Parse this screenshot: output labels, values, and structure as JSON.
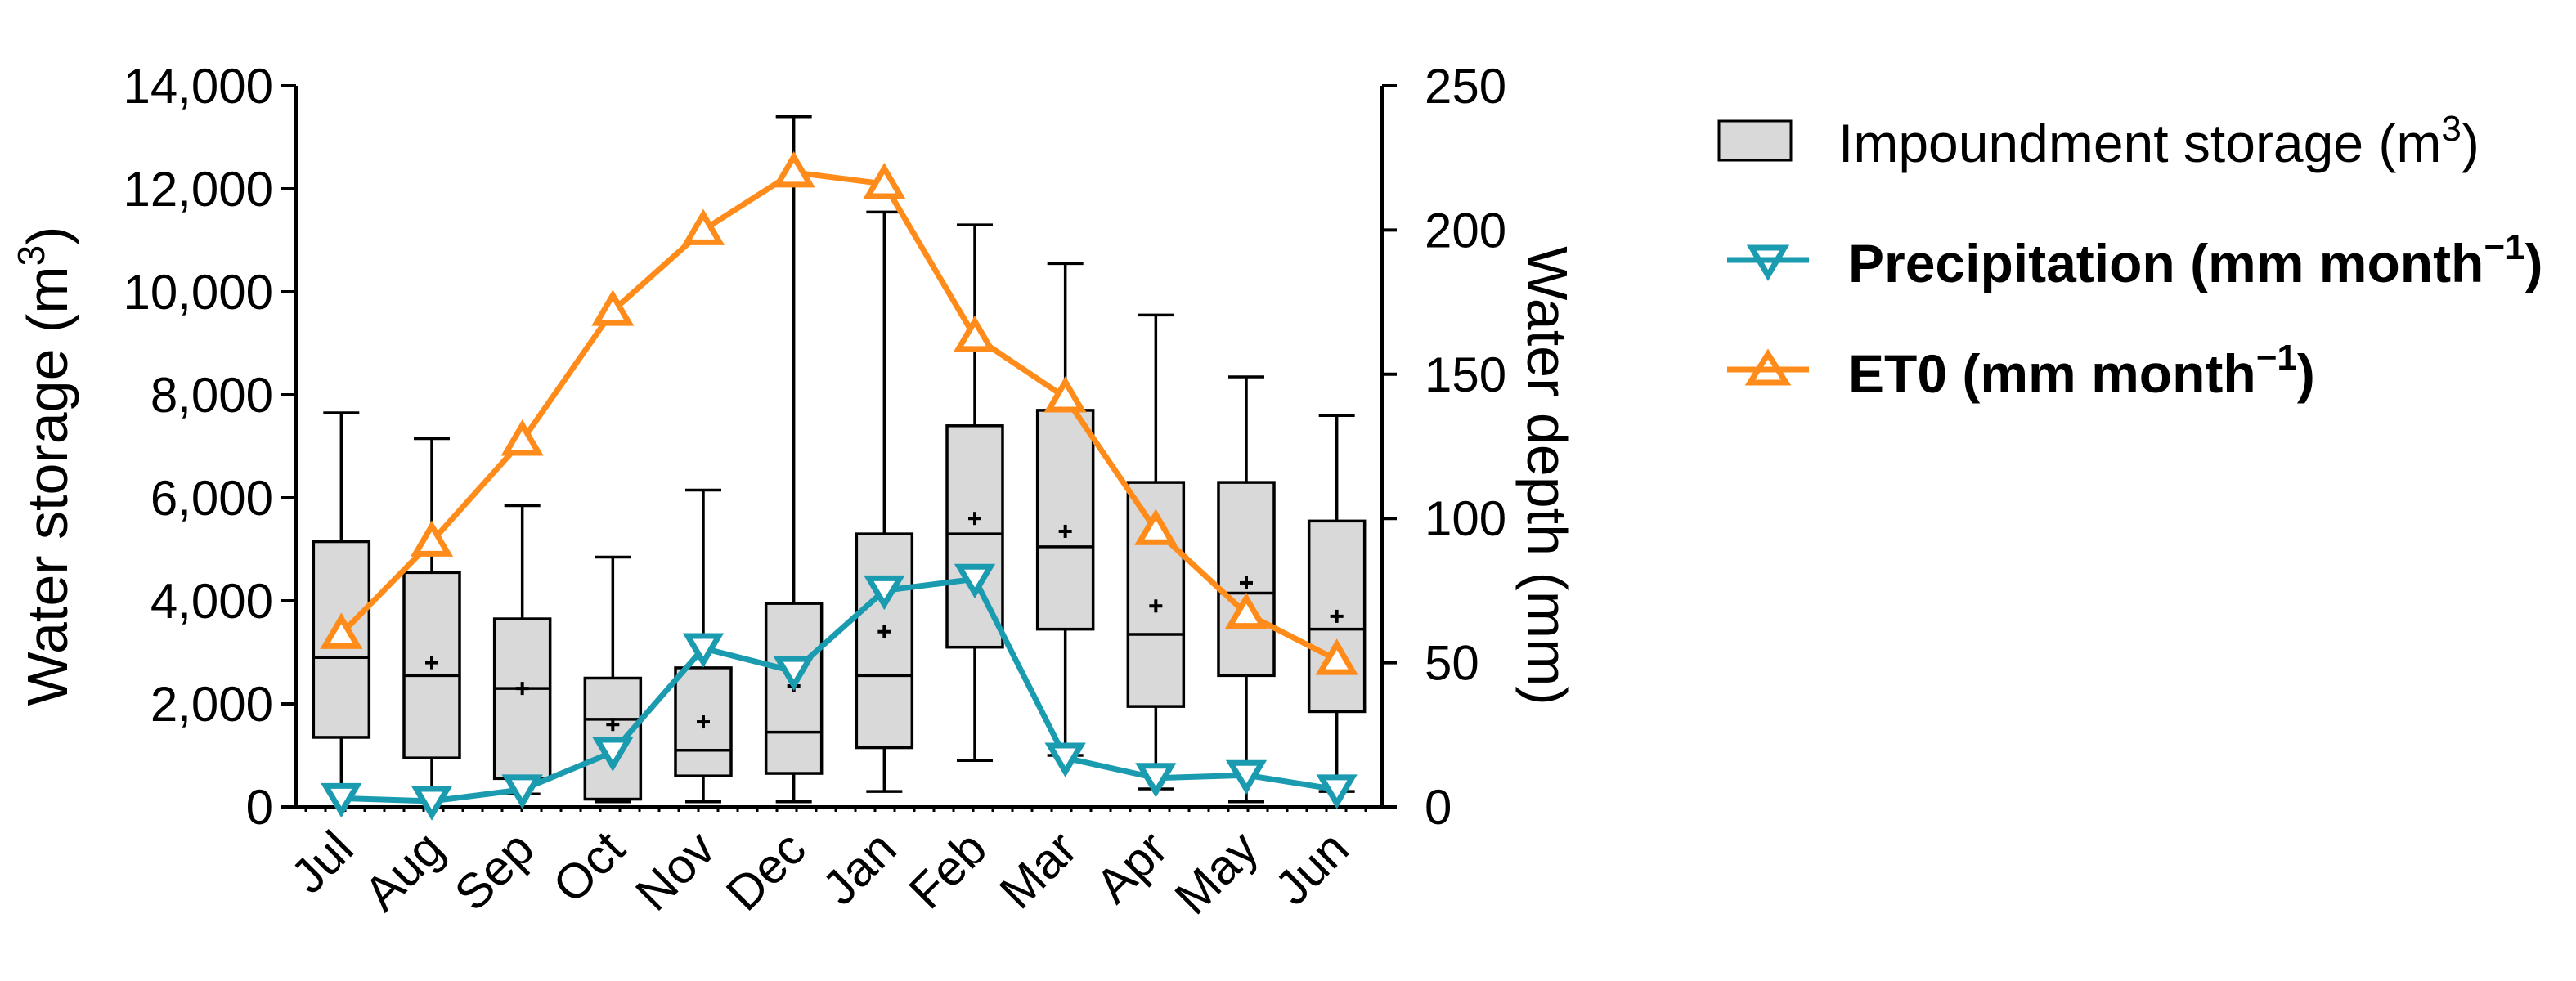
{
  "chart_data": {
    "type": "box-line",
    "title": "",
    "categories": [
      "Jul",
      "Aug",
      "Sep",
      "Oct",
      "Nov",
      "Dec",
      "Jan",
      "Feb",
      "Mar",
      "Apr",
      "May",
      "Jun"
    ],
    "left_axis": {
      "title": "Water storage (m",
      "title_sup": "3",
      "title_end": ")",
      "range": [
        0,
        14000
      ],
      "ticks": [
        0,
        2000,
        4000,
        6000,
        8000,
        10000,
        12000,
        14000
      ],
      "tick_labels": [
        "0",
        "2,000",
        "4,000",
        "6,000",
        "8,000",
        "10,000",
        "12,000",
        "14,000"
      ]
    },
    "right_axis": {
      "title": "Water depth (mm)",
      "range": [
        0,
        250
      ],
      "ticks": [
        0,
        50,
        100,
        150,
        200,
        250
      ],
      "tick_labels": [
        "0",
        "50",
        "100",
        "150",
        "200",
        "250"
      ]
    },
    "boxes": {
      "name": "Impoundment storage (m",
      "name_sup": "3",
      "name_end": ")",
      "color": "#d9d9d9",
      "min": [
        400,
        350,
        250,
        100,
        100,
        100,
        300,
        900,
        1000,
        350,
        100,
        300
      ],
      "q1": [
        1350,
        950,
        550,
        150,
        600,
        650,
        1150,
        3100,
        3450,
        1950,
        2550,
        1850
      ],
      "median": [
        2900,
        2550,
        2300,
        1700,
        1100,
        1450,
        2550,
        5300,
        5050,
        3350,
        4150,
        3450
      ],
      "q3": [
        5150,
        4550,
        3650,
        2500,
        2700,
        3950,
        5300,
        7400,
        7700,
        6300,
        6300,
        5550
      ],
      "max": [
        7650,
        7150,
        5850,
        4850,
        6150,
        13400,
        11550,
        11300,
        10550,
        9550,
        8350,
        7600
      ],
      "mean": [
        3300,
        2800,
        2300,
        1600,
        1650,
        2350,
        3400,
        5600,
        5350,
        3900,
        4350,
        3700
      ]
    },
    "series": [
      {
        "name": "Precipitation (mm month",
        "name_sup": "−1",
        "name_end": ")",
        "axis": "right",
        "marker": "triangle-down",
        "color": "#1b9bb0",
        "values": [
          3,
          2,
          6,
          19,
          55,
          47,
          75,
          79,
          17,
          10,
          11,
          6
        ]
      },
      {
        "name": "ET0 (mm month",
        "name_sup": "−1",
        "name_end": ")",
        "axis": "right",
        "marker": "triangle-up",
        "color": "#ff8c1a",
        "values": [
          60,
          92,
          127,
          172,
          200,
          220,
          216,
          163,
          142,
          96,
          67,
          51
        ]
      }
    ]
  }
}
